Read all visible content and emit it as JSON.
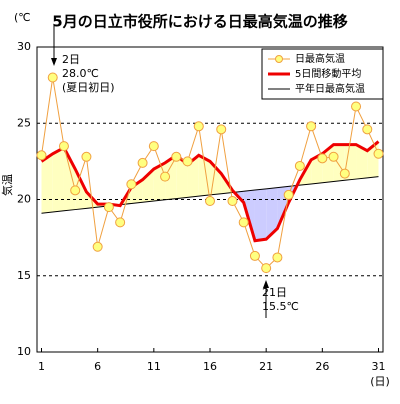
{
  "chart_data": {
    "type": "line",
    "title": "5月の日立市役所における日最高気温の推移",
    "y_unit": "(℃",
    "y_label": "気温",
    "x_unit": "(日)",
    "x": [
      1,
      2,
      3,
      4,
      5,
      6,
      7,
      8,
      9,
      10,
      11,
      12,
      13,
      14,
      15,
      16,
      17,
      18,
      19,
      20,
      21,
      22,
      23,
      24,
      25,
      26,
      27,
      28,
      29,
      30,
      31
    ],
    "xlim": [
      0.6,
      31.4
    ],
    "xticks": [
      1,
      6,
      11,
      16,
      21,
      26,
      31
    ],
    "ylim": [
      10,
      30
    ],
    "yticks": [
      10,
      15,
      20,
      25,
      30
    ],
    "grid": true,
    "legend": "upper right",
    "above_fill_color": "#ffffc0",
    "below_fill_color": "#ccccff",
    "series": [
      {
        "name": "日最高気温",
        "color": "#f0a040",
        "marker_color": "#ffff80",
        "values": [
          22.9,
          28.0,
          23.5,
          20.6,
          22.8,
          16.9,
          19.5,
          18.5,
          21.0,
          22.4,
          23.5,
          21.5,
          22.8,
          22.5,
          24.8,
          19.9,
          24.6,
          19.9,
          18.5,
          16.3,
          15.5,
          16.2,
          20.3,
          22.2,
          24.8,
          22.7,
          22.8,
          21.7,
          26.1,
          24.6,
          23.0
        ]
      },
      {
        "name": "5日間移動平均",
        "color": "#ee0000",
        "values": [
          22.5,
          23.0,
          23.4,
          22.0,
          20.5,
          19.7,
          19.7,
          19.6,
          20.8,
          21.3,
          22.0,
          22.4,
          22.9,
          22.3,
          22.9,
          22.5,
          21.7,
          20.6,
          19.8,
          17.3,
          17.4,
          18.1,
          19.8,
          21.3,
          22.6,
          23.0,
          23.6,
          23.6,
          23.6,
          23.2,
          23.8
        ]
      },
      {
        "name": "平年日最高気温",
        "color": "#000000",
        "values": [
          19.1,
          19.18,
          19.26,
          19.34,
          19.42,
          19.5,
          19.58,
          19.66,
          19.74,
          19.82,
          19.9,
          19.98,
          20.06,
          20.14,
          20.22,
          20.3,
          20.38,
          20.46,
          20.54,
          20.62,
          20.7,
          20.78,
          20.86,
          20.94,
          21.02,
          21.1,
          21.18,
          21.26,
          21.34,
          21.42,
          21.5
        ]
      }
    ],
    "annotations": [
      {
        "lines": [
          "2日",
          "28.0℃",
          "(夏日初日)"
        ]
      },
      {
        "lines": [
          "21日",
          "15.5℃"
        ]
      }
    ]
  }
}
